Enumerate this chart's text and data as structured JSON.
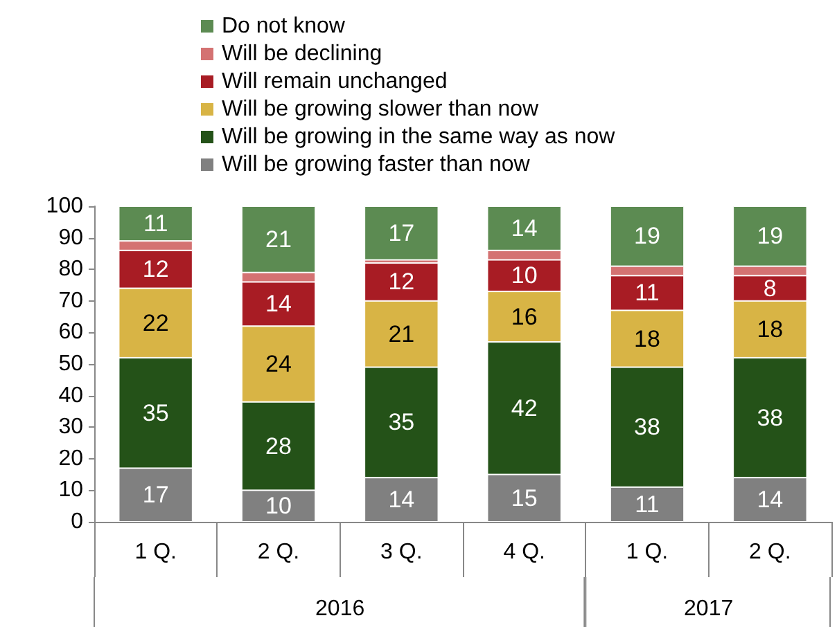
{
  "chart_data": {
    "type": "bar",
    "stacked": true,
    "categories": [
      "1 Q.",
      "2 Q.",
      "3 Q.",
      "4 Q.",
      "1 Q.",
      "2 Q."
    ],
    "series": [
      {
        "name": "Will be growing faster than now",
        "color": "#808080",
        "values": [
          17,
          10,
          14,
          15,
          11,
          14
        ],
        "value_labels": [
          "17",
          "10",
          "14",
          "15",
          "11",
          "14"
        ]
      },
      {
        "name": "Will be growing in the same way as now",
        "color": "#245218",
        "values": [
          35,
          28,
          35,
          42,
          38,
          38
        ],
        "value_labels": [
          "35",
          "28",
          "35",
          "42",
          "38",
          "38"
        ]
      },
      {
        "name": "Will be growing slower than now",
        "color": "#d8b445",
        "values": [
          22,
          24,
          21,
          16,
          18,
          18
        ],
        "value_labels": [
          "22",
          "24",
          "21",
          "16",
          "18",
          "18"
        ]
      },
      {
        "name": "Will remain unchanged",
        "color": "#a81c24",
        "values": [
          12,
          14,
          12,
          10,
          11,
          8
        ],
        "value_labels": [
          "12",
          "14",
          "12",
          "10",
          "11",
          "8"
        ]
      },
      {
        "name": "Will be declining",
        "color": "#d47272",
        "values": [
          3,
          3,
          1,
          3,
          3,
          3
        ]
      },
      {
        "name": "Do not know",
        "color": "#5c8b52",
        "values": [
          11,
          21,
          17,
          14,
          19,
          19
        ],
        "value_labels": [
          "11",
          "21",
          "17",
          "14",
          "19",
          "19"
        ]
      }
    ],
    "annotations": [
      "2016",
      "2017"
    ],
    "ylim": [
      0,
      100
    ],
    "yticks": [
      0,
      10,
      20,
      30,
      40,
      50,
      60,
      70,
      80,
      90,
      100
    ],
    "grid": false,
    "legend": "top left"
  }
}
